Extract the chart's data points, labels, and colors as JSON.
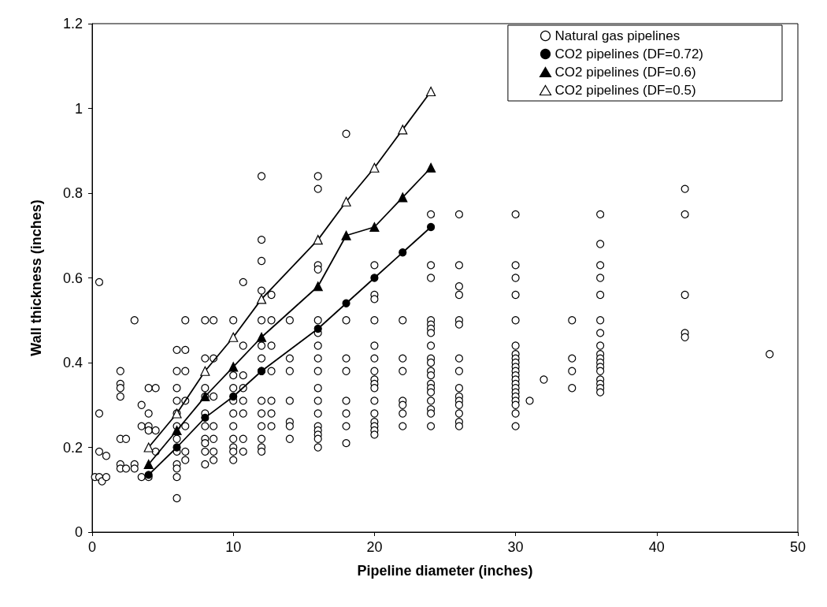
{
  "chart_data": {
    "type": "scatter",
    "xlabel": "Pipeline diameter (inches)",
    "ylabel": "Wall thickness (inches)",
    "xlim": [
      0,
      50
    ],
    "xticks": [
      0,
      10,
      20,
      30,
      40,
      50
    ],
    "ylim": [
      0,
      1.2
    ],
    "yticks": [
      0,
      0.2,
      0.4,
      0.6,
      0.8,
      1,
      1.2
    ],
    "grid": false,
    "legend": "top right",
    "series": [
      {
        "name": "Natural gas pipelines",
        "color": "#ffffff",
        "marker": "circle",
        "x": [
          0.2,
          0.5,
          0.5,
          0.5,
          0.5,
          0.7,
          1,
          1,
          2,
          2,
          2,
          2,
          2,
          2,
          2,
          2.4,
          2.4,
          3,
          3,
          3,
          3.5,
          3.5,
          3.5,
          4,
          4,
          4,
          4,
          4,
          4.5,
          4.5,
          4.5,
          6,
          6,
          6,
          6,
          6,
          6,
          6,
          6,
          6,
          6,
          6,
          6,
          6.6,
          6.6,
          6.6,
          6.6,
          6.6,
          6.6,
          6.6,
          8,
          8,
          8,
          8,
          8,
          8,
          8,
          8,
          8,
          8,
          8.6,
          8.6,
          8.6,
          8.6,
          8.6,
          8.6,
          8.6,
          10,
          10,
          10,
          10,
          10,
          10,
          10,
          10,
          10,
          10,
          10.7,
          10.7,
          10.7,
          10.7,
          10.7,
          10.7,
          10.7,
          10.7,
          12,
          12,
          12,
          12,
          12,
          12,
          12,
          12,
          12,
          12,
          12,
          12,
          12,
          12,
          12.7,
          12.7,
          12.7,
          12.7,
          12.7,
          12.7,
          12.7,
          14,
          14,
          14,
          14,
          14,
          14,
          14,
          16,
          16,
          16,
          16,
          16,
          16,
          16,
          16,
          16,
          16,
          16,
          16,
          16,
          16,
          16,
          16,
          16,
          18,
          18,
          18,
          18,
          18,
          18,
          18,
          18,
          20,
          20,
          20,
          20,
          20,
          20,
          20,
          20,
          20,
          20,
          20,
          20,
          20,
          20,
          20,
          20,
          22,
          22,
          22,
          22,
          22,
          22,
          22,
          24,
          24,
          24,
          24,
          24,
          24,
          24,
          24,
          24,
          24,
          24,
          24,
          24,
          24,
          24,
          24,
          24,
          24,
          24,
          26,
          26,
          26,
          26,
          26,
          26,
          26,
          26,
          26,
          26,
          26,
          26,
          26,
          26,
          26,
          30,
          30,
          30,
          30,
          30,
          30,
          30,
          30,
          30,
          30,
          30,
          30,
          30,
          30,
          30,
          30,
          30,
          30,
          30,
          30,
          30,
          31,
          32,
          34,
          34,
          34,
          34,
          36,
          36,
          36,
          36,
          36,
          36,
          36,
          36,
          36,
          36,
          36,
          36,
          36,
          36,
          36,
          36,
          36,
          42,
          42,
          42,
          42,
          42,
          48
        ],
        "values": [
          0.13,
          0.59,
          0.28,
          0.19,
          0.13,
          0.12,
          0.18,
          0.13,
          0.38,
          0.35,
          0.34,
          0.32,
          0.22,
          0.16,
          0.15,
          0.22,
          0.15,
          0.5,
          0.16,
          0.15,
          0.3,
          0.25,
          0.13,
          0.34,
          0.28,
          0.25,
          0.24,
          0.13,
          0.34,
          0.24,
          0.19,
          0.43,
          0.38,
          0.34,
          0.31,
          0.28,
          0.25,
          0.22,
          0.19,
          0.16,
          0.15,
          0.13,
          0.08,
          0.5,
          0.43,
          0.38,
          0.31,
          0.25,
          0.19,
          0.17,
          0.5,
          0.41,
          0.34,
          0.32,
          0.28,
          0.25,
          0.22,
          0.21,
          0.19,
          0.16,
          0.5,
          0.41,
          0.32,
          0.25,
          0.22,
          0.19,
          0.17,
          0.5,
          0.37,
          0.34,
          0.31,
          0.28,
          0.25,
          0.22,
          0.2,
          0.19,
          0.17,
          0.59,
          0.44,
          0.37,
          0.34,
          0.31,
          0.28,
          0.22,
          0.19,
          0.84,
          0.69,
          0.64,
          0.57,
          0.5,
          0.44,
          0.41,
          0.38,
          0.31,
          0.28,
          0.25,
          0.22,
          0.2,
          0.19,
          0.56,
          0.5,
          0.44,
          0.38,
          0.31,
          0.28,
          0.25,
          0.5,
          0.41,
          0.38,
          0.31,
          0.26,
          0.25,
          0.22,
          0.84,
          0.81,
          0.63,
          0.62,
          0.5,
          0.47,
          0.44,
          0.41,
          0.38,
          0.34,
          0.31,
          0.28,
          0.25,
          0.24,
          0.23,
          0.22,
          0.2,
          0.94,
          0.5,
          0.41,
          0.38,
          0.31,
          0.28,
          0.25,
          0.21,
          0.63,
          0.56,
          0.55,
          0.5,
          0.44,
          0.41,
          0.38,
          0.36,
          0.35,
          0.34,
          0.31,
          0.28,
          0.26,
          0.25,
          0.24,
          0.23,
          0.5,
          0.41,
          0.38,
          0.31,
          0.3,
          0.28,
          0.25,
          0.75,
          0.63,
          0.6,
          0.5,
          0.49,
          0.48,
          0.47,
          0.44,
          0.41,
          0.4,
          0.38,
          0.37,
          0.35,
          0.34,
          0.33,
          0.31,
          0.29,
          0.28,
          0.25,
          0.75,
          0.63,
          0.58,
          0.56,
          0.5,
          0.49,
          0.41,
          0.38,
          0.34,
          0.32,
          0.31,
          0.3,
          0.28,
          0.26,
          0.25,
          0.75,
          0.63,
          0.6,
          0.56,
          0.5,
          0.44,
          0.42,
          0.41,
          0.4,
          0.39,
          0.38,
          0.37,
          0.36,
          0.35,
          0.34,
          0.33,
          0.32,
          0.31,
          0.3,
          0.28,
          0.25,
          0.31,
          0.36,
          0.5,
          0.41,
          0.38,
          0.34,
          0.75,
          0.68,
          0.63,
          0.6,
          0.56,
          0.5,
          0.47,
          0.44,
          0.42,
          0.41,
          0.4,
          0.39,
          0.38,
          0.36,
          0.35,
          0.34,
          0.33,
          0.81,
          0.75,
          0.56,
          0.47,
          0.46,
          0.42
        ]
      },
      {
        "name": "CO2 pipelines (DF=0.72)",
        "type": "line",
        "color": "#000000",
        "marker": "circle",
        "x": [
          4,
          6,
          8,
          10,
          12,
          16,
          18,
          20,
          22,
          24
        ],
        "values": [
          0.135,
          0.2,
          0.27,
          0.32,
          0.38,
          0.48,
          0.54,
          0.6,
          0.66,
          0.72
        ]
      },
      {
        "name": "CO2 pipelines (DF=0.6)",
        "type": "line",
        "color": "#000000",
        "marker": "triangle",
        "x": [
          4,
          6,
          8,
          10,
          12,
          16,
          18,
          20,
          22,
          24
        ],
        "values": [
          0.16,
          0.24,
          0.32,
          0.39,
          0.46,
          0.58,
          0.7,
          0.72,
          0.79,
          0.86
        ]
      },
      {
        "name": "CO2 pipelines (DF=0.5)",
        "type": "line",
        "color": "#ffffff",
        "marker": "triangle",
        "x": [
          4,
          6,
          8,
          10,
          12,
          16,
          18,
          20,
          22,
          24
        ],
        "values": [
          0.2,
          0.28,
          0.38,
          0.46,
          0.55,
          0.69,
          0.78,
          0.86,
          0.95,
          1.04
        ]
      }
    ]
  }
}
